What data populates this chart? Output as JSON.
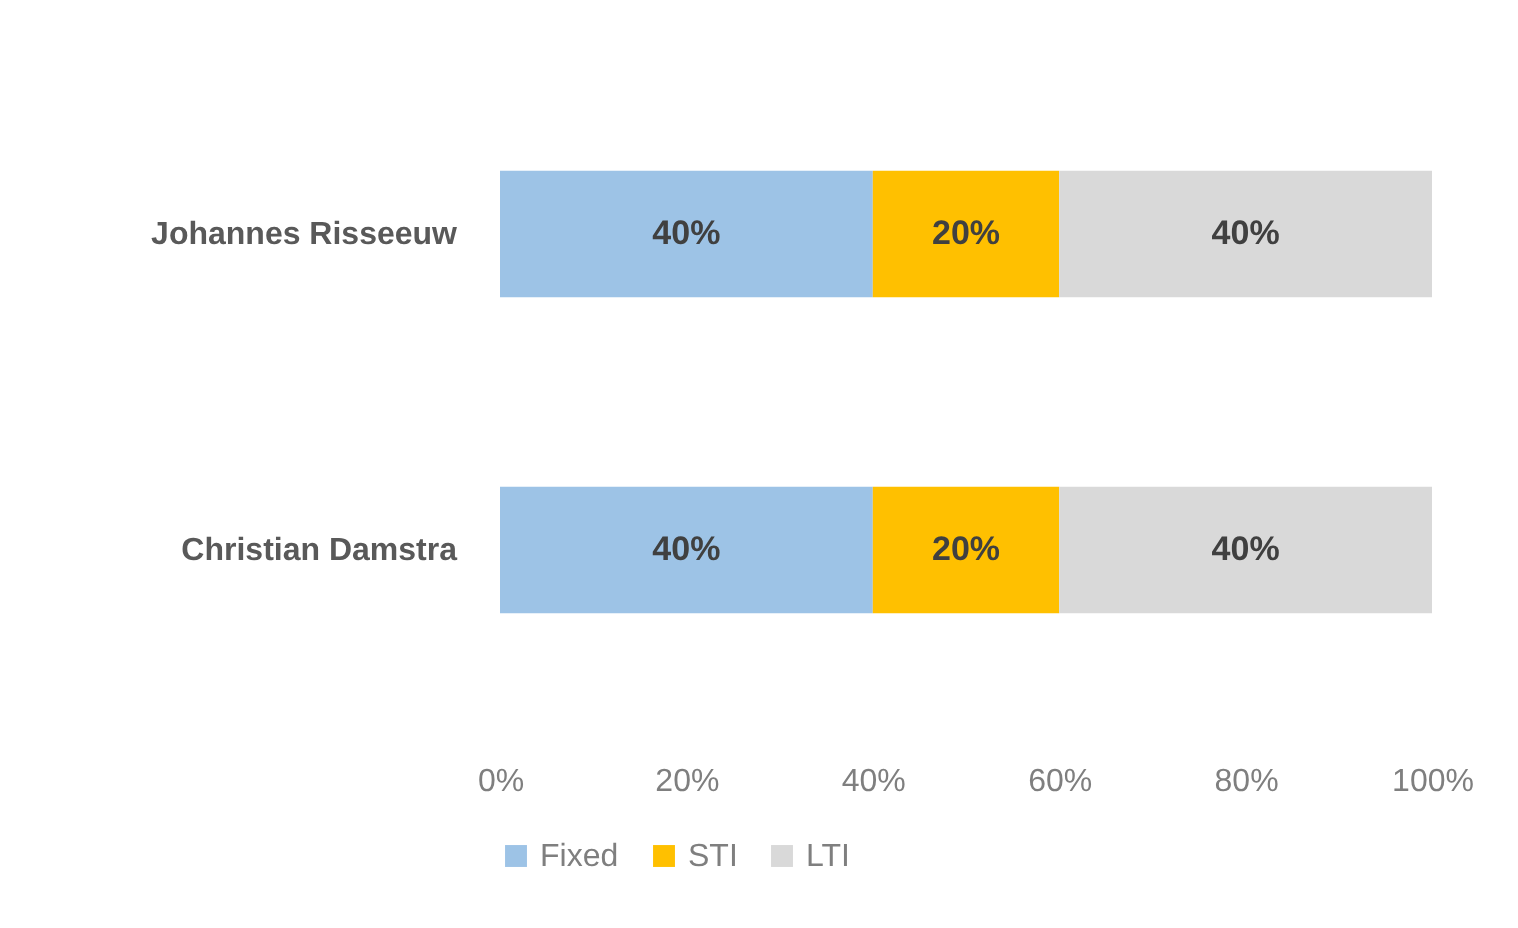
{
  "chart_data": {
    "type": "bar",
    "orientation": "horizontal",
    "stacked": true,
    "categories": [
      "Johannes Risseeuw",
      "Christian Damstra"
    ],
    "series": [
      {
        "name": "Fixed",
        "color": "#9dc3e6",
        "values": [
          40,
          40
        ],
        "value_labels": [
          "40%",
          "40%"
        ]
      },
      {
        "name": "STI",
        "color": "#ffc000",
        "values": [
          20,
          20
        ],
        "value_labels": [
          "20%",
          "20%"
        ]
      },
      {
        "name": "LTI",
        "color": "#d9d9d9",
        "values": [
          40,
          40
        ],
        "value_labels": [
          "40%",
          "40%"
        ]
      }
    ],
    "xlim": [
      0,
      100
    ],
    "xticks": [
      {
        "value": 0,
        "label": "0%"
      },
      {
        "value": 20,
        "label": "20%"
      },
      {
        "value": 40,
        "label": "40%"
      },
      {
        "value": 60,
        "label": "60%"
      },
      {
        "value": 80,
        "label": "80%"
      },
      {
        "value": 100,
        "label": "100%"
      }
    ],
    "grid": false,
    "legend": "bottom"
  }
}
